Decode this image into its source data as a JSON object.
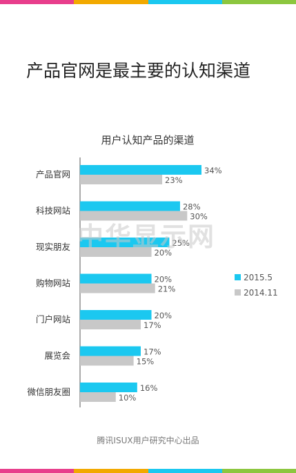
{
  "headline": "产品官网是最主要的认知渠道",
  "watermark": "中华显示网",
  "footer": "腾讯ISUX用户研究中心出品",
  "colors": {
    "stripe": [
      "#e83e8c",
      "#f2a900",
      "#1bc8f0",
      "#8cc63f"
    ],
    "series_2015": "#1bc8f0",
    "series_2014": "#c8c8c8"
  },
  "chart_data": {
    "type": "bar",
    "orientation": "horizontal",
    "title": "用户认知产品的渠道",
    "categories": [
      "产品官网",
      "科技网站",
      "现实朋友",
      "购物网站",
      "门户网站",
      "展览会",
      "微信朋友圈"
    ],
    "series": [
      {
        "name": "2015.5",
        "values": [
          34,
          28,
          25,
          20,
          20,
          17,
          16
        ],
        "color": "#1bc8f0"
      },
      {
        "name": "2014.11",
        "values": [
          23,
          30,
          20,
          21,
          17,
          15,
          10
        ],
        "color": "#c8c8c8"
      }
    ],
    "value_suffix": "%",
    "xlim": [
      0,
      34
    ],
    "grid": false,
    "legend_position": "right"
  }
}
